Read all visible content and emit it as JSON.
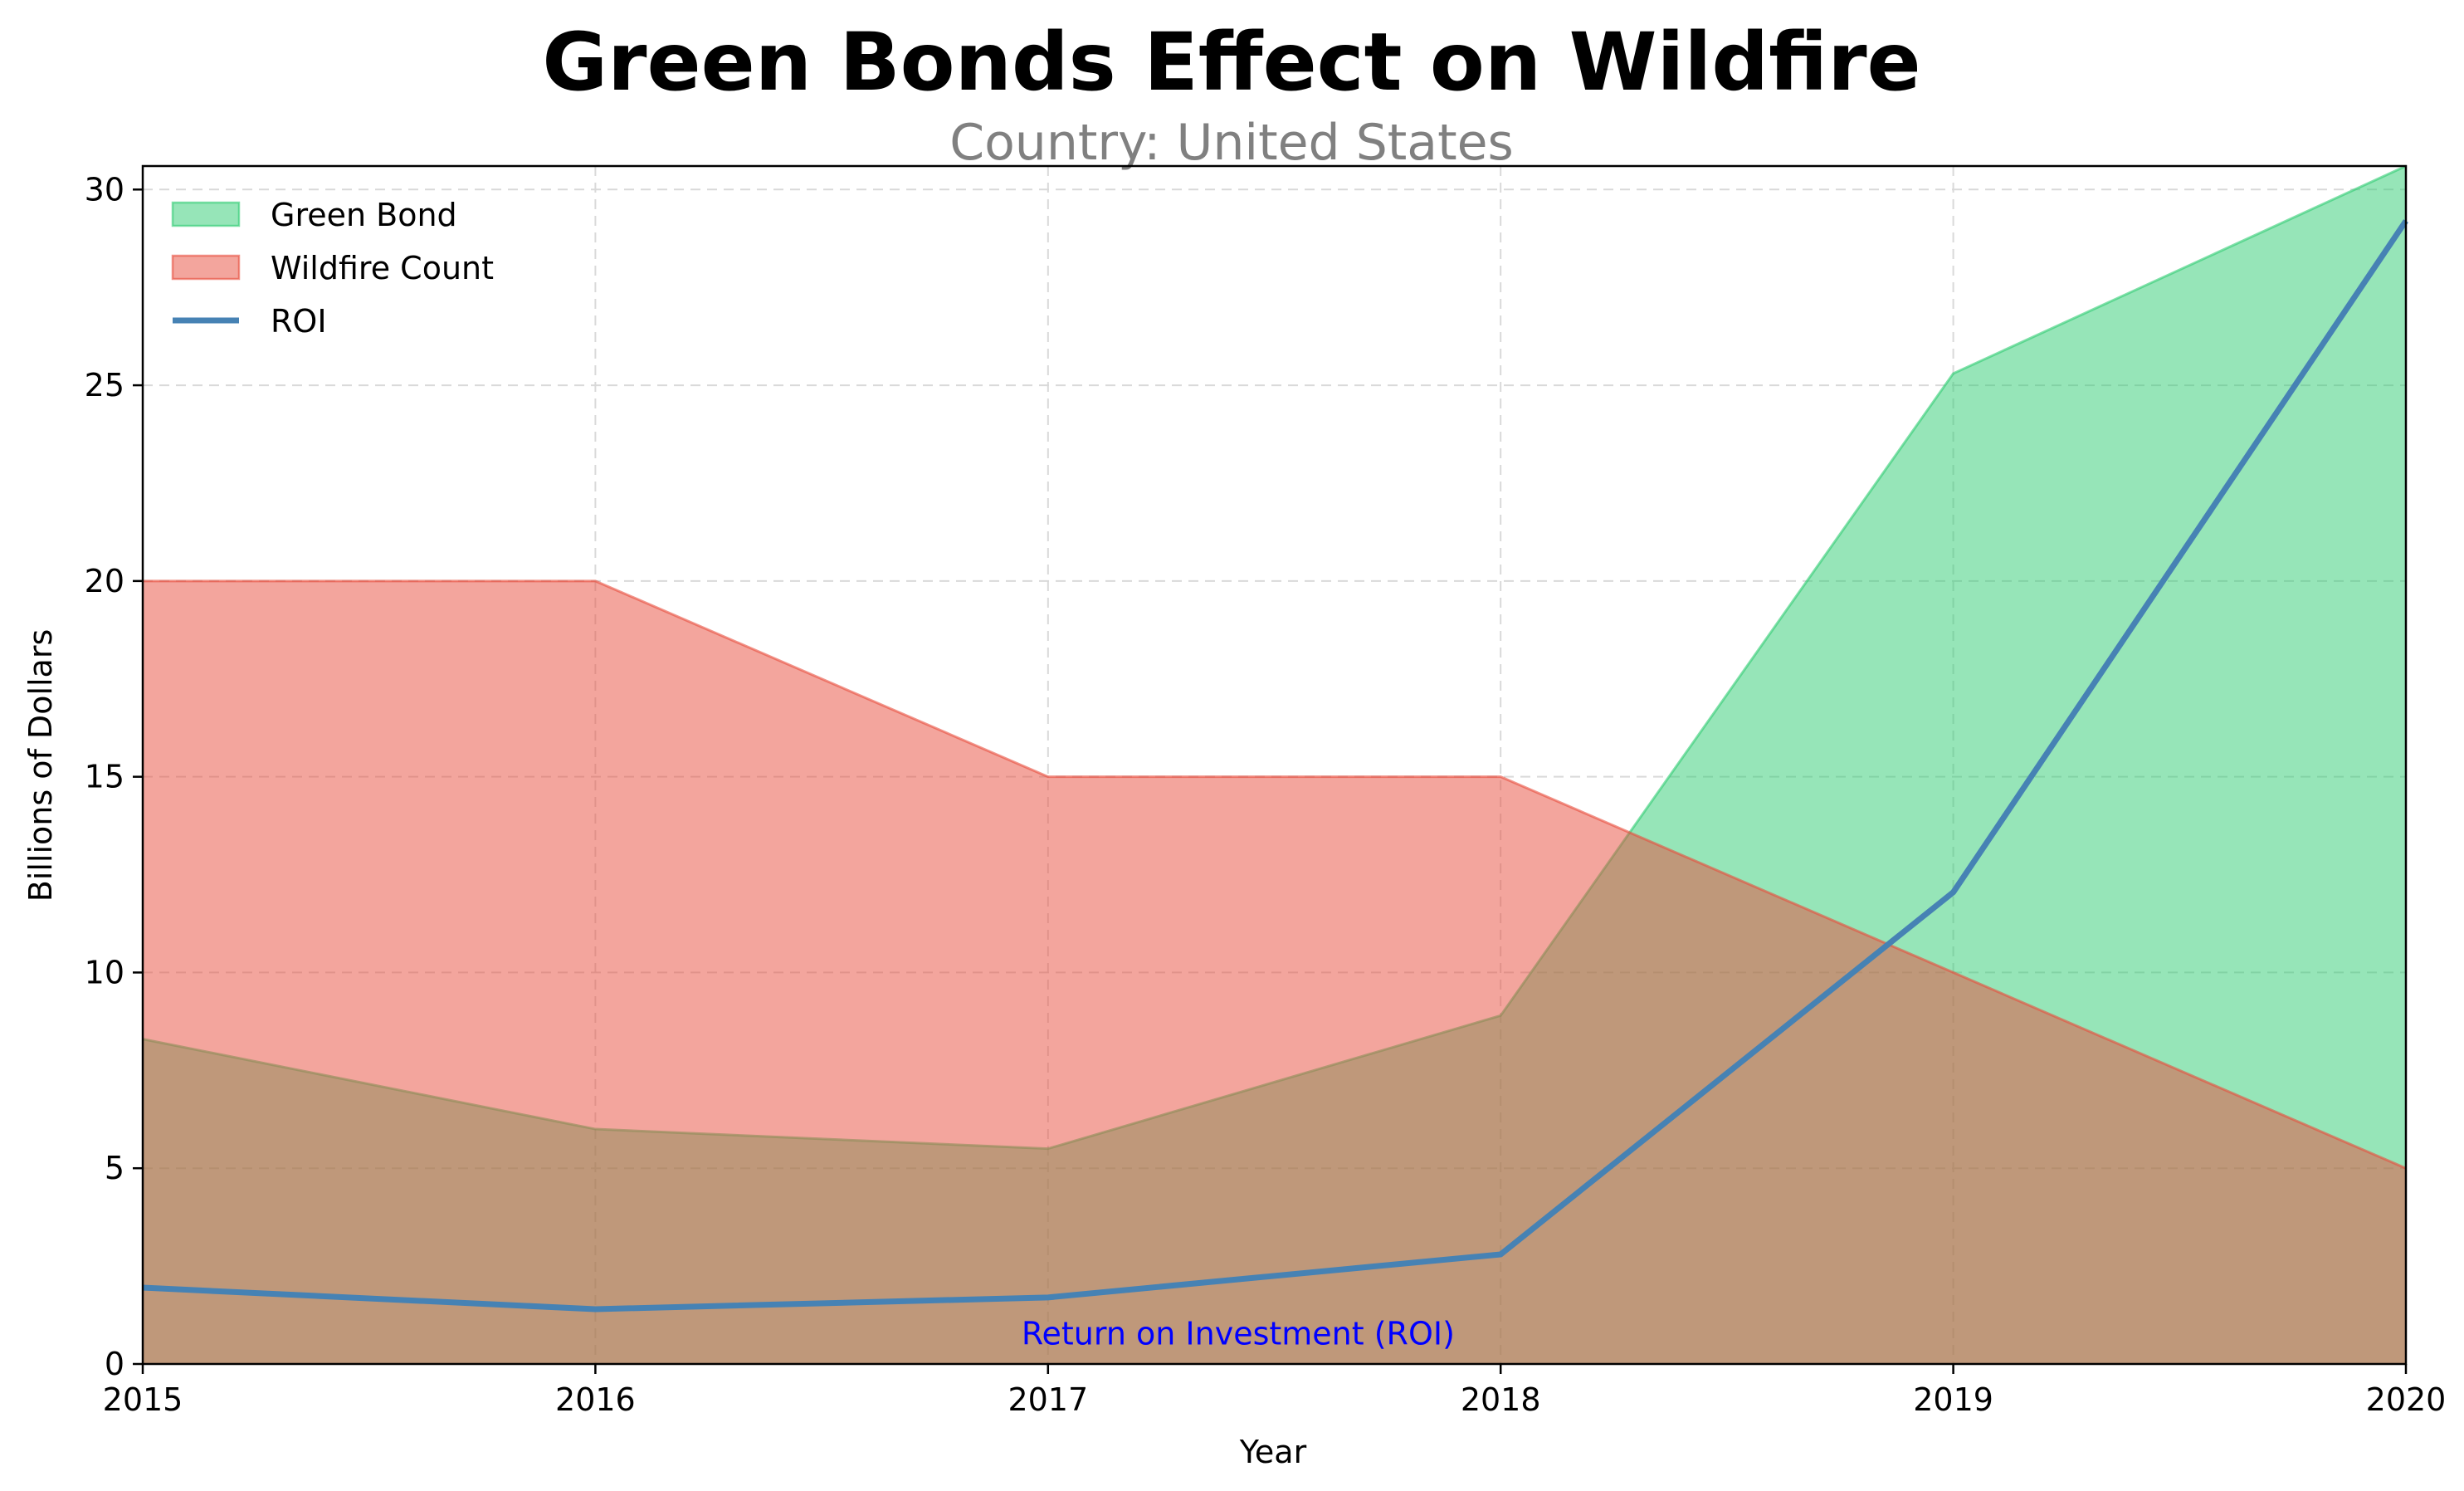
{
  "chart_data": {
    "type": "area",
    "title": "Green Bonds Effect on Wildfire",
    "subtitle": "Country: United States",
    "xlabel": "Year",
    "ylabel": "Billions of Dollars",
    "x": [
      2015,
      2016,
      2017,
      2018,
      2019,
      2020
    ],
    "xlim": [
      2015,
      2020
    ],
    "ylim": [
      0,
      30.6
    ],
    "xticks": [
      "2015",
      "2016",
      "2017",
      "2018",
      "2019",
      "2020"
    ],
    "yticks": [
      "0",
      "5",
      "10",
      "15",
      "20",
      "25",
      "30"
    ],
    "grid": true,
    "legend_position": "top-left",
    "series": [
      {
        "name": "Green Bond",
        "kind": "area",
        "values": [
          8.3,
          6.0,
          5.5,
          8.9,
          25.3,
          30.6
        ],
        "color": "#2ecc71"
      },
      {
        "name": "Wildfire Count",
        "kind": "area",
        "values": [
          20,
          20,
          15,
          15,
          10,
          5
        ],
        "color": "#e74c3c"
      },
      {
        "name": "ROI",
        "kind": "line",
        "values": [
          1.95,
          1.4,
          1.7,
          2.8,
          12.05,
          29.2
        ],
        "color": "#4682b4"
      }
    ],
    "annotations": [
      {
        "text": "Return on Investment (ROI)",
        "x": 2017.42,
        "y": 0.5,
        "color": "#0000ff"
      }
    ]
  }
}
